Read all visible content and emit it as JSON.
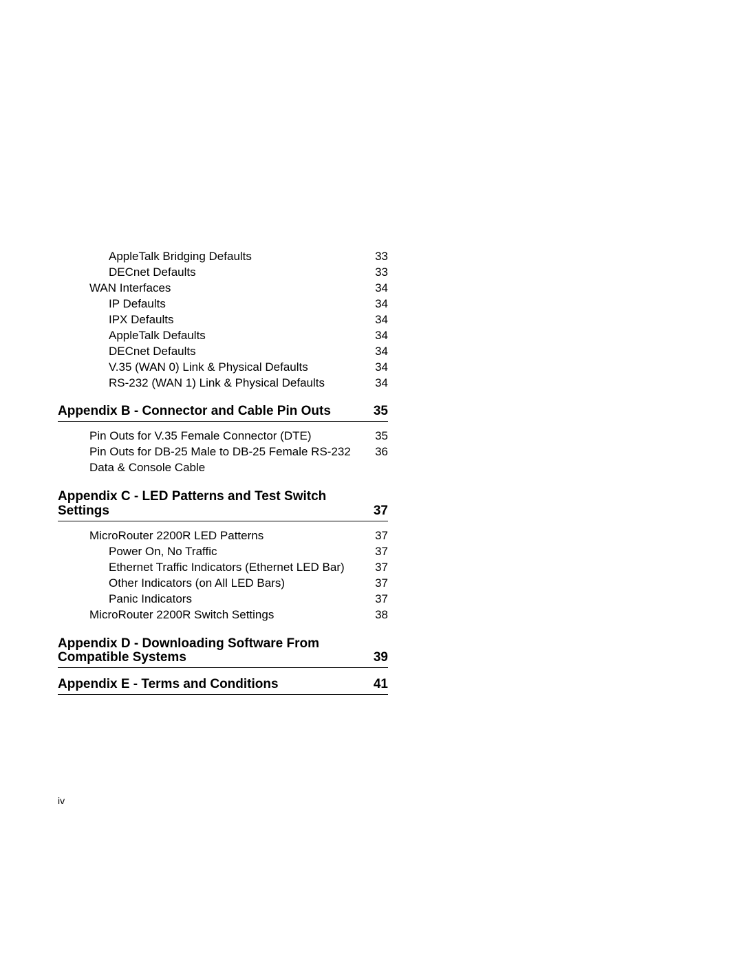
{
  "colors": {
    "text": "#000000",
    "bg": "#ffffff",
    "rule": "#000000"
  },
  "fonts": {
    "body_pt": 17,
    "heading_pt": 19,
    "footer_pt": 14,
    "family": "Arial"
  },
  "entries_top": [
    {
      "label": "AppleTalk Bridging Defaults",
      "page": "33",
      "level": 3
    },
    {
      "label": "DECnet Defaults",
      "page": "33",
      "level": 3
    },
    {
      "label": "WAN Interfaces",
      "page": "34",
      "level": 2
    },
    {
      "label": "IP Defaults",
      "page": "34",
      "level": 3
    },
    {
      "label": "IPX Defaults",
      "page": "34",
      "level": 3
    },
    {
      "label": "AppleTalk Defaults",
      "page": "34",
      "level": 3
    },
    {
      "label": "DECnet Defaults",
      "page": "34",
      "level": 3
    },
    {
      "label": "V.35 (WAN 0) Link & Physical Defaults",
      "page": "34",
      "level": 3
    },
    {
      "label": "RS-232 (WAN 1) Link & Physical Defaults",
      "page": "34",
      "level": 3
    }
  ],
  "section_b": {
    "title": "Appendix B - Connector and Cable Pin Outs",
    "page": "35",
    "entries": [
      {
        "label": "Pin Outs for V.35 Female Connector (DTE)",
        "page": "35",
        "level": 2
      },
      {
        "label": "Pin Outs for DB-25 Male to DB-25 Female RS-232 Data & Console Cable",
        "page": "36",
        "level": 2
      }
    ]
  },
  "section_c": {
    "title": "Appendix C - LED Patterns and Test Switch Settings",
    "page": "37",
    "entries": [
      {
        "label": "MicroRouter 2200R LED Patterns",
        "page": "37",
        "level": 2
      },
      {
        "label": "Power On, No Traffic",
        "page": "37",
        "level": 3
      },
      {
        "label": "Ethernet Traffic Indicators (Ethernet  LED Bar)",
        "page": "37",
        "level": 3
      },
      {
        "label": "Other Indicators (on All LED Bars)",
        "page": "37",
        "level": 3
      },
      {
        "label": "Panic Indicators",
        "page": "37",
        "level": 3
      },
      {
        "label": "MicroRouter 2200R Switch Settings",
        "page": "38",
        "level": 2
      }
    ]
  },
  "section_d": {
    "title": "Appendix D - Downloading Software From Compatible Systems",
    "page": "39"
  },
  "section_e": {
    "title": "Appendix E - Terms and Conditions",
    "page": "41"
  },
  "footer": "iv"
}
